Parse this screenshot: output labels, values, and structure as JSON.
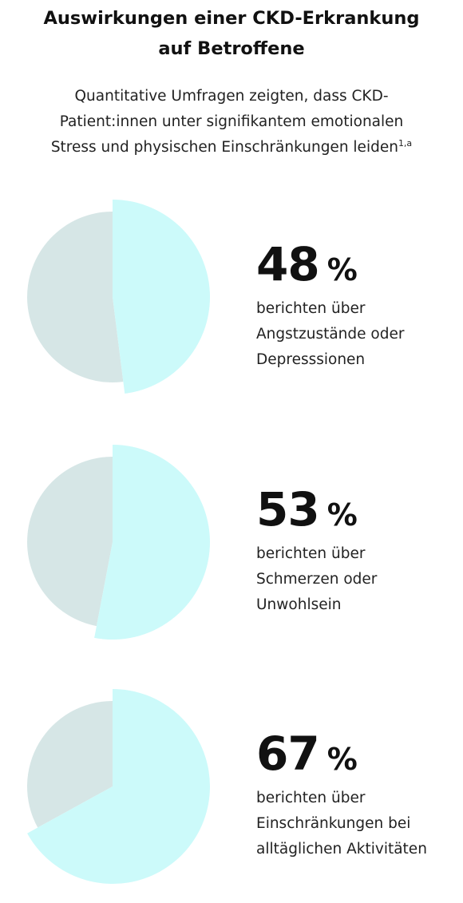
{
  "title_line1": "Auswirkungen einer CKD-Erkrankung",
  "title_line2": "auf Betroffene",
  "subtitle_line1": "Quantitative Umfragen zeigten, dass CKD-",
  "subtitle_line2": "Patient:innen unter signifikantem emotionalen",
  "subtitle_line3": "Stress und physischen Einschränkungen leiden",
  "subtitle_footnote": "1,a",
  "colors": {
    "highlight": "#ccfafa",
    "remainder": "#d6e6e6",
    "text": "#111111"
  },
  "chart_data": {
    "type": "pie",
    "unit": "%",
    "items": [
      {
        "value": 48,
        "value_label": "48",
        "unit_label": "%",
        "text_lines": [
          "berichten über",
          "Angstzustände oder",
          "Depresssionen"
        ]
      },
      {
        "value": 53,
        "value_label": "53",
        "unit_label": "%",
        "text_lines": [
          "berichten über",
          "Schmerzen oder",
          "Unwohlsein"
        ]
      },
      {
        "value": 67,
        "value_label": "67",
        "unit_label": "%",
        "text_lines": [
          "berichten über",
          "Einschränkungen bei",
          "alltäglichen Aktivitäten"
        ]
      }
    ]
  }
}
